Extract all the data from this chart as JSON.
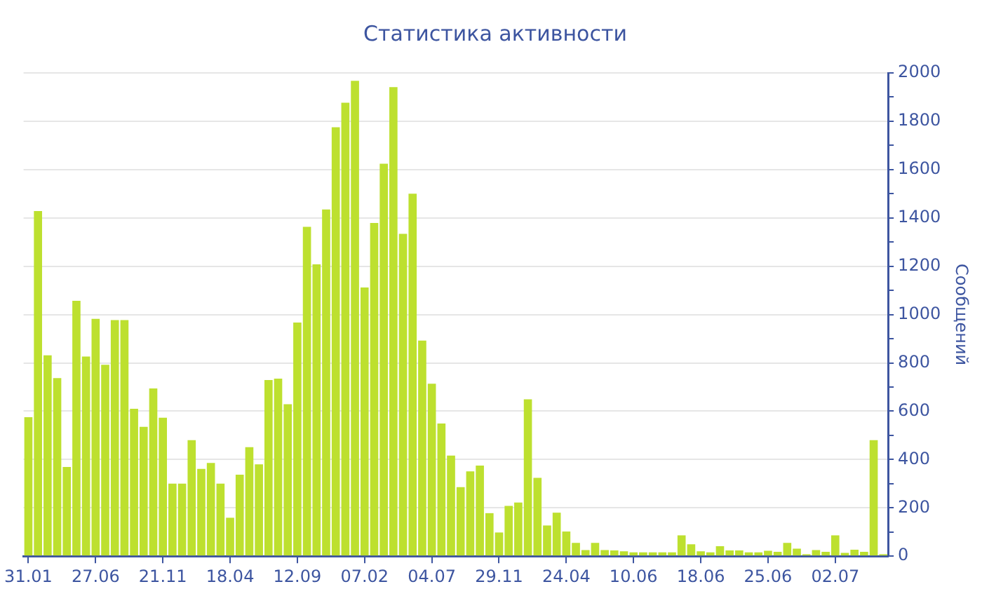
{
  "chart_data": {
    "type": "bar",
    "title": "Статистика активности",
    "ylabel": "Сообщений",
    "categories": [
      "31.01",
      null,
      null,
      null,
      null,
      null,
      null,
      "27.06",
      null,
      null,
      null,
      null,
      null,
      null,
      "21.11",
      null,
      null,
      null,
      null,
      null,
      null,
      "18.04",
      null,
      null,
      null,
      null,
      null,
      null,
      "12.09",
      null,
      null,
      null,
      null,
      null,
      null,
      "07.02",
      null,
      null,
      null,
      null,
      null,
      null,
      "04.07",
      null,
      null,
      null,
      null,
      null,
      null,
      "29.11",
      null,
      null,
      null,
      null,
      null,
      null,
      "24.04",
      null,
      null,
      null,
      null,
      null,
      null,
      "10.06",
      null,
      null,
      null,
      null,
      null,
      null,
      "18.06",
      null,
      null,
      null,
      null,
      null,
      null,
      "25.06",
      null,
      null,
      null,
      null,
      null,
      null,
      "02.07",
      null,
      null,
      null,
      null,
      null
    ],
    "values": [
      575,
      1428,
      831,
      737,
      369,
      1057,
      826,
      982,
      792,
      977,
      977,
      610,
      535,
      694,
      573,
      300,
      300,
      480,
      361,
      386,
      300,
      159,
      337,
      451,
      380,
      729,
      735,
      629,
      967,
      1363,
      1208,
      1435,
      1775,
      1877,
      1967,
      1112,
      1379,
      1624,
      1941,
      1334,
      1500,
      892,
      714,
      549,
      416,
      286,
      351,
      375,
      178,
      98,
      208,
      222,
      649,
      324,
      127,
      180,
      102,
      55,
      25,
      55,
      25,
      24,
      20,
      16,
      16,
      16,
      16,
      16,
      86,
      49,
      20,
      16,
      41,
      24,
      24,
      16,
      16,
      22,
      18,
      55,
      31,
      8,
      25,
      18,
      86,
      14,
      27,
      18,
      480,
      8
    ],
    "color": "#bde02f",
    "ylim": [
      0,
      2000
    ],
    "yticks": [
      0,
      {
        "value": 100,
        "label": null
      },
      200,
      {
        "value": 300,
        "label": null
      },
      400,
      {
        "value": 500,
        "label": null
      },
      600,
      {
        "value": 700,
        "label": null
      },
      800,
      {
        "value": 900,
        "label": null
      },
      1000,
      {
        "value": 1100,
        "label": null
      },
      1200,
      {
        "value": 1300,
        "label": null
      },
      1400,
      {
        "value": 1500,
        "label": null
      },
      1600,
      {
        "value": 1700,
        "label": null
      },
      1800,
      {
        "value": 1900,
        "label": null
      },
      2000
    ],
    "grid": "y"
  }
}
